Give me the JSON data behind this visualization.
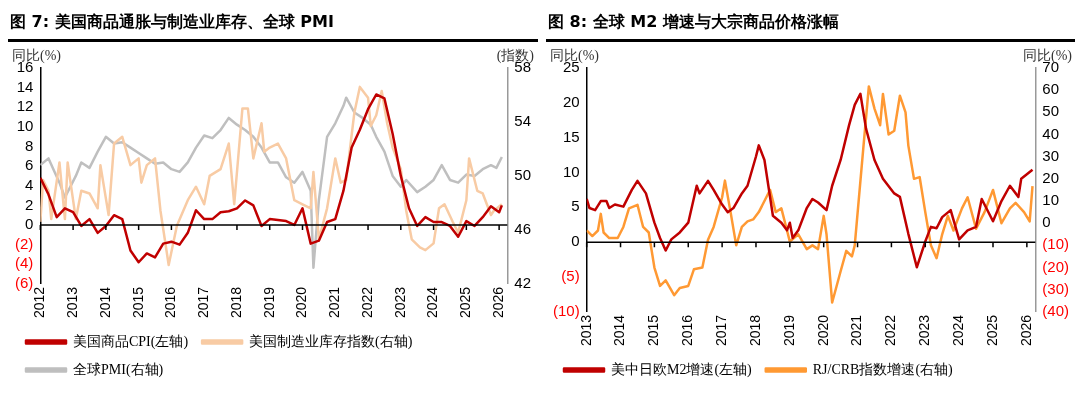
{
  "chart_data": [
    {
      "type": "line",
      "title": "图 7: 美国商品通胀与制造业库存、全球 PMI",
      "ylabel": "同比(%)",
      "y2label": "(指数)",
      "xlim": [
        "2012-01",
        "2026-04"
      ],
      "xticks": [
        "2012",
        "2013",
        "2014",
        "2015",
        "2016",
        "2017",
        "2018",
        "2019",
        "2020",
        "2021",
        "2022",
        "2023",
        "2024",
        "2025",
        "2026"
      ],
      "ylim": [
        -6,
        16
      ],
      "yticks": [
        {
          "value": -6,
          "label": "(6)"
        },
        {
          "value": -4,
          "label": "(4)"
        },
        {
          "value": -2,
          "label": "(2)"
        },
        0,
        2,
        4,
        6,
        8,
        10,
        12,
        14,
        16
      ],
      "y2lim": [
        42,
        58
      ],
      "y2ticks": [
        42,
        46,
        50,
        54,
        58
      ],
      "legend": "bottom",
      "marker": "none",
      "ref_lines": [
        {
          "axis": "y",
          "value": 0,
          "color": "#000000"
        }
      ],
      "series": [
        {
          "name": "美国商品CPI(左轴)",
          "color": "#c00000",
          "x": [
            "2012-01",
            "2012-04",
            "2012-07",
            "2012-10",
            "2013-01",
            "2013-04",
            "2013-07",
            "2013-10",
            "2014-01",
            "2014-04",
            "2014-07",
            "2014-10",
            "2015-01",
            "2015-04",
            "2015-07",
            "2015-10",
            "2016-01",
            "2016-04",
            "2016-07",
            "2016-10",
            "2017-01",
            "2017-04",
            "2017-07",
            "2017-10",
            "2018-01",
            "2018-04",
            "2018-07",
            "2018-10",
            "2019-01",
            "2019-07",
            "2019-10",
            "2020-01",
            "2020-04",
            "2020-07",
            "2020-10",
            "2021-01",
            "2021-04",
            "2021-07",
            "2021-10",
            "2022-01",
            "2022-04",
            "2022-07",
            "2022-10",
            "2023-01",
            "2023-04",
            "2023-07",
            "2023-10",
            "2024-01",
            "2024-04",
            "2024-07",
            "2024-10",
            "2025-01",
            "2025-04",
            "2025-07",
            "2025-10",
            "2026-01",
            "2026-02"
          ],
          "values": [
            4.8,
            3.1,
            0.8,
            1.7,
            1.3,
            -0.1,
            0.6,
            -0.8,
            -0.1,
            1.0,
            0.6,
            -2.6,
            -3.8,
            -2.9,
            -3.3,
            -1.9,
            -1.7,
            -2.0,
            -0.8,
            1.5,
            0.6,
            0.6,
            1.3,
            1.4,
            1.7,
            2.5,
            2.0,
            -0.1,
            0.6,
            0.4,
            0,
            1.7,
            -1.9,
            -1.6,
            0.3,
            0.6,
            3.5,
            7.9,
            9.7,
            11.8,
            13.3,
            12.9,
            9.3,
            5.0,
            1.7,
            -0.1,
            0.8,
            0.3,
            0.3,
            -0.1,
            -1.2,
            0.4,
            -0.1,
            0.8,
            1.9,
            1.3,
            2.0
          ]
        },
        {
          "name": "美国制造业库存指数(右轴)",
          "color": "#f8cba4",
          "axis": "y2",
          "x": [
            "2012-01",
            "2012-02",
            "2012-04",
            "2012-05",
            "2012-08",
            "2012-10",
            "2012-11",
            "2013-02",
            "2013-04",
            "2013-07",
            "2013-10",
            "2013-11",
            "2014-02",
            "2014-04",
            "2014-07",
            "2014-10",
            "2015-01",
            "2015-02",
            "2015-04",
            "2015-07",
            "2015-09",
            "2015-12",
            "2016-03",
            "2016-07",
            "2016-10",
            "2017-01",
            "2017-03",
            "2017-07",
            "2017-10",
            "2017-12",
            "2018-03",
            "2018-05",
            "2018-07",
            "2018-10",
            "2018-11",
            "2019-01",
            "2019-04",
            "2019-07",
            "2019-10",
            "2020-01",
            "2020-04",
            "2020-05",
            "2020-07",
            "2020-10",
            "2021-01",
            "2021-03",
            "2021-05",
            "2021-08",
            "2021-10",
            "2022-01",
            "2022-02",
            "2022-04",
            "2022-06",
            "2022-08",
            "2022-10",
            "2023-01",
            "2023-03",
            "2023-05",
            "2023-08",
            "2023-10",
            "2024-01",
            "2024-03",
            "2024-05",
            "2024-08",
            "2024-10",
            "2025-01",
            "2025-02",
            "2025-05",
            "2025-07",
            "2025-10",
            "2025-11",
            "2026-02"
          ],
          "values": [
            46.6,
            49.7,
            48.9,
            46.8,
            51.0,
            46.8,
            51.0,
            46.8,
            48.9,
            48.7,
            47.6,
            50.8,
            47.1,
            52.4,
            52.9,
            50.8,
            51.3,
            49.5,
            50.8,
            51.3,
            47.4,
            43.4,
            46.3,
            48.2,
            49.2,
            47.9,
            50.0,
            50.5,
            52.4,
            47.9,
            55.0,
            55.0,
            51.3,
            53.9,
            51.8,
            52.1,
            52.4,
            51.3,
            48.2,
            47.9,
            47.6,
            50.3,
            45.3,
            47.6,
            51.3,
            49.5,
            49.7,
            54.7,
            56.6,
            55.8,
            53.7,
            54.5,
            56.3,
            53.9,
            52.1,
            50.5,
            47.4,
            45.3,
            44.7,
            44.5,
            45.0,
            47.6,
            47.9,
            46.6,
            45.8,
            48.2,
            51.3,
            48.9,
            48.7,
            47.1,
            47.4,
            47.9
          ]
        },
        {
          "name": "全球PMI(右轴)",
          "color": "#bfbfbf",
          "axis": "y2",
          "x": [
            "2012-01",
            "2012-04",
            "2012-08",
            "2012-10",
            "2013-02",
            "2013-04",
            "2013-07",
            "2013-10",
            "2014-01",
            "2014-04",
            "2014-07",
            "2014-10",
            "2015-01",
            "2015-04",
            "2015-07",
            "2015-10",
            "2016-01",
            "2016-04",
            "2016-07",
            "2016-10",
            "2017-01",
            "2017-04",
            "2017-07",
            "2017-10",
            "2018-01",
            "2018-04",
            "2018-07",
            "2018-10",
            "2019-01",
            "2019-04",
            "2019-07",
            "2019-10",
            "2020-01",
            "2020-04",
            "2020-05",
            "2020-07",
            "2020-10",
            "2021-01",
            "2021-04",
            "2021-05",
            "2021-08",
            "2021-11",
            "2022-02",
            "2022-04",
            "2022-07",
            "2022-10",
            "2023-01",
            "2023-03",
            "2023-07",
            "2023-10",
            "2024-01",
            "2024-04",
            "2024-07",
            "2024-10",
            "2025-01",
            "2025-04",
            "2025-07",
            "2025-10",
            "2025-12",
            "2026-02"
          ],
          "values": [
            50.8,
            51.3,
            49.5,
            48.4,
            50.0,
            51.0,
            50.6,
            51.8,
            52.9,
            52.4,
            52.5,
            52.1,
            51.7,
            51.3,
            50.9,
            51.0,
            50.5,
            50.3,
            51.0,
            52.1,
            53.0,
            52.8,
            53.4,
            54.3,
            53.8,
            53.4,
            52.9,
            52.1,
            51.0,
            51.0,
            49.9,
            49.5,
            50.3,
            48.9,
            43.2,
            48.2,
            52.9,
            53.9,
            55.2,
            55.8,
            54.7,
            54.3,
            53.8,
            52.9,
            51.8,
            50.0,
            49.2,
            49.7,
            48.8,
            49.2,
            49.7,
            50.8,
            49.7,
            49.5,
            50.1,
            50.0,
            50.5,
            50.8,
            50.6,
            51.4
          ]
        }
      ]
    },
    {
      "type": "line",
      "title": "图 8: 全球 M2 增速与大宗商品价格涨幅",
      "ylabel": "同比(%)",
      "y2label": "同比(%)",
      "xlim": [
        "2013-01",
        "2026-04"
      ],
      "xticks": [
        "2013",
        "2014",
        "2015",
        "2016",
        "2017",
        "2018",
        "2019",
        "2020",
        "2021",
        "2022",
        "2023",
        "2024",
        "2025",
        "2026"
      ],
      "ylim": [
        -10,
        25
      ],
      "yticks": [
        {
          "value": -10,
          "label": "(10)"
        },
        {
          "value": -5,
          "label": "(5)"
        },
        0,
        5,
        10,
        15,
        20,
        25
      ],
      "y2lim": [
        -40,
        70
      ],
      "y2ticks": [
        {
          "value": -40,
          "label": "(40)"
        },
        {
          "value": -30,
          "label": "(30)"
        },
        {
          "value": -20,
          "label": "(20)"
        },
        {
          "value": -10,
          "label": "(10)"
        },
        0,
        10,
        20,
        30,
        40,
        50,
        60,
        70
      ],
      "legend": "bottom",
      "marker": "none",
      "ref_lines": [
        {
          "axis": "y",
          "value": 0,
          "color": "#000000"
        }
      ],
      "series": [
        {
          "name": "美中日欧M2增速(左轴)",
          "color": "#c00000",
          "x": [
            "2013-01",
            "2013-02",
            "2013-04",
            "2013-06",
            "2013-08",
            "2013-09",
            "2013-11",
            "2014-02",
            "2014-05",
            "2014-07",
            "2014-10",
            "2015-01",
            "2015-03",
            "2015-05",
            "2015-07",
            "2015-10",
            "2016-01",
            "2016-04",
            "2016-05",
            "2016-08",
            "2016-10",
            "2017-01",
            "2017-03",
            "2017-05",
            "2017-08",
            "2017-10",
            "2018-01",
            "2018-02",
            "2018-04",
            "2018-07",
            "2018-10",
            "2018-12",
            "2019-01",
            "2019-02",
            "2019-04",
            "2019-07",
            "2019-09",
            "2019-11",
            "2020-02",
            "2020-04",
            "2020-07",
            "2020-10",
            "2020-12",
            "2021-02",
            "2021-04",
            "2021-07",
            "2021-10",
            "2022-02",
            "2022-04",
            "2022-07",
            "2022-10",
            "2023-01",
            "2023-03",
            "2023-05",
            "2023-07",
            "2023-10",
            "2024-01",
            "2024-04",
            "2024-07",
            "2024-09",
            "2025-01",
            "2025-04",
            "2025-07",
            "2025-10",
            "2025-11",
            "2026-03"
          ],
          "values": [
            6.2,
            4.9,
            4.6,
            5.9,
            5.9,
            4.9,
            5.4,
            5.1,
            7.5,
            8.8,
            7.0,
            2.8,
            0.6,
            -1.2,
            0.4,
            1.4,
            2.8,
            8.1,
            7.0,
            8.8,
            7.5,
            5.4,
            4.3,
            4.9,
            7.0,
            8.1,
            12.3,
            13.9,
            11.8,
            3.8,
            2.8,
            1.7,
            2.8,
            0.6,
            1.7,
            4.9,
            6.2,
            5.7,
            4.6,
            8.1,
            11.8,
            16.8,
            19.7,
            21.3,
            16.3,
            11.8,
            9.1,
            7.0,
            6.5,
            1.2,
            -3.6,
            0.1,
            2.2,
            2.0,
            3.6,
            4.6,
            0.4,
            1.7,
            2.2,
            6.2,
            3.0,
            5.9,
            8.1,
            6.5,
            9.1,
            10.4
          ]
        },
        {
          "name": "RJ/CRB指数增速(右轴)",
          "color": "#ff9933",
          "axis": "y2",
          "x": [
            "2013-01",
            "2013-03",
            "2013-05",
            "2013-06",
            "2013-07",
            "2013-09",
            "2013-12",
            "2014-02",
            "2014-04",
            "2014-07",
            "2014-09",
            "2014-11",
            "2015-01",
            "2015-03",
            "2015-05",
            "2015-08",
            "2015-10",
            "2016-01",
            "2016-03",
            "2016-06",
            "2016-08",
            "2016-10",
            "2017-01",
            "2017-02",
            "2017-04",
            "2017-06",
            "2017-08",
            "2017-10",
            "2017-12",
            "2018-02",
            "2018-04",
            "2018-06",
            "2018-08",
            "2018-10",
            "2018-12",
            "2019-01",
            "2019-04",
            "2019-07",
            "2019-09",
            "2019-11",
            "2020-01",
            "2020-02",
            "2020-04",
            "2020-07",
            "2020-09",
            "2020-11",
            "2020-12",
            "2021-03",
            "2021-05",
            "2021-07",
            "2021-09",
            "2021-10",
            "2021-12",
            "2022-02",
            "2022-04",
            "2022-06",
            "2022-07",
            "2022-09",
            "2022-11",
            "2023-01",
            "2023-03",
            "2023-05",
            "2023-07",
            "2023-09",
            "2023-11",
            "2024-02",
            "2024-04",
            "2024-07",
            "2024-10",
            "2025-01",
            "2025-04",
            "2025-07",
            "2025-09",
            "2025-12",
            "2026-02",
            "2026-03"
          ],
          "values": [
            -3.3,
            -5.8,
            -3.3,
            4.2,
            -4.2,
            -6.7,
            -6.7,
            -1.7,
            6.7,
            8.3,
            -1.7,
            -4.2,
            -20,
            -28.3,
            -25.8,
            -32.5,
            -29.2,
            -28.3,
            -20.8,
            -20,
            -7.5,
            -1.7,
            11.7,
            19.2,
            5,
            -10,
            -1.7,
            0.8,
            1.7,
            5,
            10,
            15,
            5,
            6.7,
            -3.3,
            -8.3,
            -5,
            -11.7,
            -10,
            -11.7,
            3.3,
            -5,
            -35.8,
            -21.7,
            -12.5,
            -15,
            -10,
            33.3,
            61.7,
            51.7,
            44.2,
            58.3,
            40,
            41.7,
            57.5,
            50,
            35,
            20,
            20.8,
            5,
            -10,
            -15.8,
            -5,
            3.3,
            -3.3,
            6.7,
            11.7,
            -2.5,
            5,
            15,
            0,
            6.7,
            9.2,
            5,
            0.8,
            16.7
          ]
        }
      ]
    }
  ]
}
